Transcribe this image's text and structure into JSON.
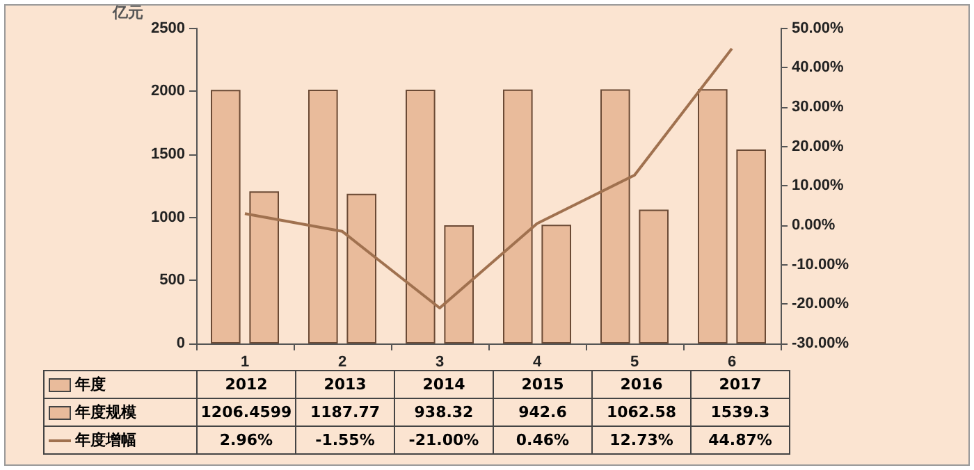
{
  "chart_data": {
    "type": "bar",
    "categories": [
      "1",
      "2",
      "3",
      "4",
      "5",
      "6"
    ],
    "ylabel": "亿元",
    "series": [
      {
        "name": "年度",
        "color": "#e9bb9b",
        "values": [
          2012,
          2013,
          2014,
          2015,
          2016,
          2017
        ],
        "value_labels": [
          "2012",
          "2013",
          "2014",
          "2015",
          "2016",
          "2017"
        ]
      },
      {
        "name": "年度规模",
        "color": "#e9bb9b",
        "values": [
          1206.4599,
          1187.77,
          938.32,
          942.6,
          1062.58,
          1539.3
        ],
        "value_labels": [
          "1206.4599",
          "1187.77",
          "938.32",
          "942.6",
          "1062.58",
          "1539.3"
        ]
      },
      {
        "name": "年度增幅",
        "type": "line",
        "axis": "y2",
        "color": "#a0714f",
        "values": [
          2.96,
          -1.55,
          -21.0,
          0.46,
          12.73,
          44.87
        ],
        "value_labels": [
          "2.96%",
          "-1.55%",
          "-21.00%",
          "0.46%",
          "12.73%",
          "44.87%"
        ]
      }
    ],
    "ylim": [
      0,
      2500
    ],
    "yticks": [
      0,
      500,
      1000,
      1500,
      2000,
      2500
    ],
    "y2lim": [
      -30,
      50
    ],
    "y2ticks": [
      {
        "value": -30,
        "label": "-30.00%"
      },
      {
        "value": -20,
        "label": "-20.00%"
      },
      {
        "value": -10,
        "label": "-10.00%"
      },
      {
        "value": 0,
        "label": "0.00%"
      },
      {
        "value": 10,
        "label": "10.00%"
      },
      {
        "value": 20,
        "label": "20.00%"
      },
      {
        "value": 30,
        "label": "30.00%"
      },
      {
        "value": 40,
        "label": "40.00%"
      },
      {
        "value": 50,
        "label": "50.00%"
      }
    ],
    "legend": "bottom left",
    "marker": "none",
    "grid": false
  }
}
